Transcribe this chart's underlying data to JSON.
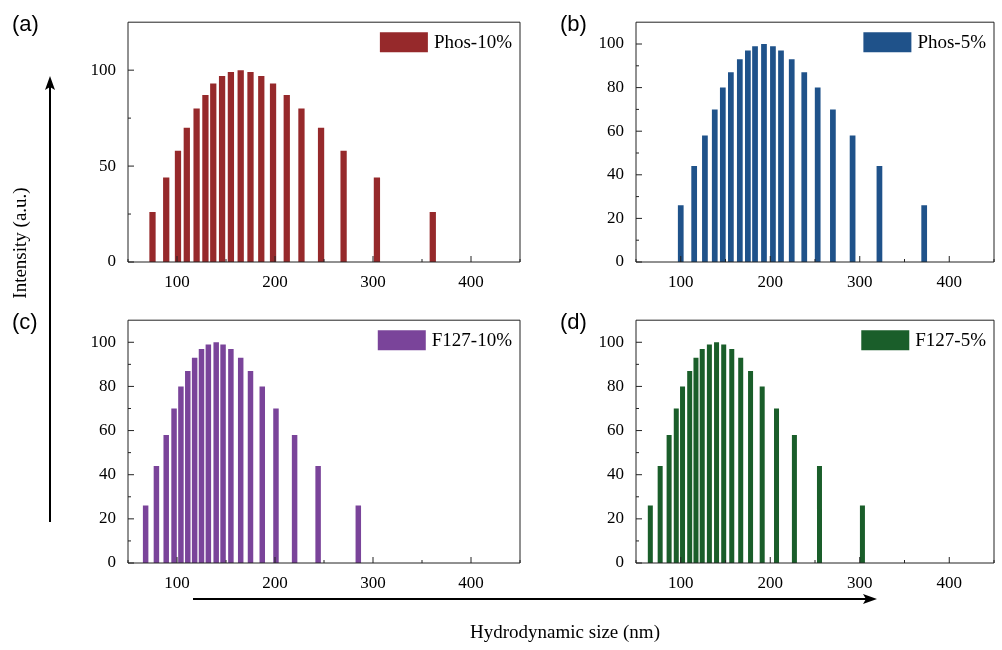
{
  "chart_data": [
    {
      "type": "bar",
      "ylabel": "Intensity (a.u.)",
      "annotations": [
        "(a)"
      ],
      "legend": "top right",
      "x": [
        75,
        89,
        101,
        110,
        120,
        129,
        137,
        146,
        155,
        165,
        175,
        186,
        198,
        212,
        227,
        247,
        270,
        304,
        361
      ],
      "series": [
        {
          "name": "Phos-10%",
          "color": "#96292b",
          "values": [
            26,
            44,
            58,
            70,
            80,
            87,
            93,
            97,
            99,
            100,
            99,
            97,
            93,
            87,
            80,
            70,
            58,
            44,
            26
          ]
        }
      ],
      "xlim": [
        50,
        450
      ],
      "xticks": [
        {
          "value": 50,
          "label": null
        },
        100,
        {
          "value": 150,
          "label": null
        },
        200,
        {
          "value": 250,
          "label": null
        },
        300,
        {
          "value": 350,
          "label": null
        },
        400,
        {
          "value": 450,
          "label": null
        }
      ],
      "ylim": [
        0,
        125
      ],
      "yticks": [
        0,
        {
          "value": 25,
          "label": null
        },
        50,
        {
          "value": 75,
          "label": null
        },
        100
      ]
    },
    {
      "type": "bar",
      "annotations": [
        "(b)"
      ],
      "legend": "top right",
      "x": [
        100,
        115,
        127,
        138,
        147,
        156,
        166,
        175,
        183,
        193,
        203,
        212,
        224,
        238,
        253,
        270,
        292,
        322,
        372
      ],
      "series": [
        {
          "name": "Phos-5%",
          "color": "#1f528a",
          "values": [
            26,
            44,
            58,
            70,
            80,
            87,
            93,
            97,
            99,
            100,
            99,
            97,
            93,
            87,
            80,
            70,
            58,
            44,
            26
          ]
        }
      ],
      "xlim": [
        50,
        450
      ],
      "xticks": [
        {
          "value": 50,
          "label": null
        },
        100,
        {
          "value": 150,
          "label": null
        },
        200,
        {
          "value": 250,
          "label": null
        },
        300,
        {
          "value": 350,
          "label": null
        },
        400,
        {
          "value": 450,
          "label": null
        }
      ],
      "ylim": [
        0,
        110
      ],
      "yticks": [
        0,
        {
          "value": 10,
          "label": null
        },
        20,
        {
          "value": 30,
          "label": null
        },
        40,
        {
          "value": 50,
          "label": null
        },
        60,
        {
          "value": 70,
          "label": null
        },
        80,
        {
          "value": 90,
          "label": null
        },
        100
      ]
    },
    {
      "type": "bar",
      "xlabel": "Hydrodynamic size (nm)",
      "annotations": [
        "(c)"
      ],
      "legend": "top right",
      "x": [
        68,
        79,
        89,
        97,
        104,
        111,
        118,
        125,
        132,
        140,
        147,
        155,
        165,
        175,
        187,
        201,
        220,
        244,
        285
      ],
      "series": [
        {
          "name": "F127-10%",
          "color": "#7a449a",
          "values": [
            26,
            44,
            58,
            70,
            80,
            87,
            93,
            97,
            99,
            100,
            99,
            97,
            93,
            87,
            80,
            70,
            58,
            44,
            26
          ]
        }
      ],
      "xlim": [
        50,
        450
      ],
      "xticks": [
        {
          "value": 50,
          "label": null
        },
        100,
        {
          "value": 150,
          "label": null
        },
        200,
        {
          "value": 250,
          "label": null
        },
        300,
        {
          "value": 350,
          "label": null
        },
        400,
        {
          "value": 450,
          "label": null
        }
      ],
      "ylim": [
        0,
        110
      ],
      "yticks": [
        0,
        {
          "value": 10,
          "label": null
        },
        20,
        {
          "value": 30,
          "label": null
        },
        40,
        {
          "value": 50,
          "label": null
        },
        60,
        {
          "value": 70,
          "label": null
        },
        80,
        {
          "value": 90,
          "label": null
        },
        100
      ]
    },
    {
      "type": "bar",
      "annotations": [
        "(d)"
      ],
      "legend": "top right",
      "x": [
        66,
        77,
        87,
        95,
        102,
        110,
        117,
        124,
        132,
        140,
        148,
        157,
        167,
        178,
        191,
        207,
        227,
        255,
        303
      ],
      "series": [
        {
          "name": "F127-5%",
          "color": "#1a5e2a",
          "values": [
            26,
            44,
            58,
            70,
            80,
            87,
            93,
            97,
            99,
            100,
            99,
            97,
            93,
            87,
            80,
            70,
            58,
            44,
            26
          ]
        }
      ],
      "xlim": [
        50,
        450
      ],
      "xticks": [
        {
          "value": 50,
          "label": null
        },
        100,
        {
          "value": 150,
          "label": null
        },
        200,
        {
          "value": 250,
          "label": null
        },
        300,
        {
          "value": 350,
          "label": null
        },
        400,
        {
          "value": 450,
          "label": null
        }
      ],
      "ylim": [
        0,
        110
      ],
      "yticks": [
        0,
        {
          "value": 10,
          "label": null
        },
        20,
        {
          "value": 30,
          "label": null
        },
        40,
        {
          "value": 50,
          "label": null
        },
        60,
        {
          "value": 70,
          "label": null
        },
        80,
        {
          "value": 90,
          "label": null
        },
        100
      ]
    }
  ]
}
